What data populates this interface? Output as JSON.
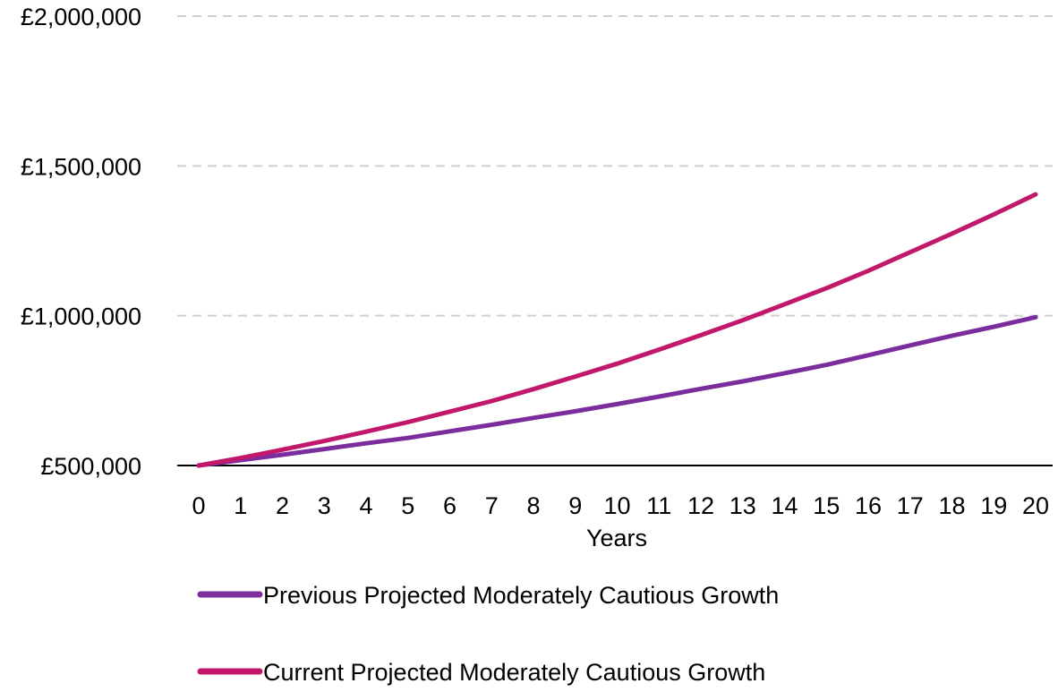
{
  "chart_data": {
    "type": "line",
    "title": "",
    "xlabel": "Years",
    "ylabel": "",
    "x": [
      0,
      1,
      2,
      3,
      4,
      5,
      6,
      7,
      8,
      9,
      10,
      11,
      12,
      13,
      14,
      15,
      16,
      17,
      18,
      19,
      20
    ],
    "ylim": [
      500000,
      2000000
    ],
    "yticks": [
      500000,
      1000000,
      1500000,
      2000000
    ],
    "ytick_labels": [
      "£500,000",
      "£1,000,000",
      "£1,500,000",
      "£2,000,000"
    ],
    "grid": true,
    "legend_position": "bottom",
    "series": [
      {
        "name": "Previous Projected Moderately Cautious Growth",
        "color": "#7b2d9e",
        "values": [
          500000,
          518000,
          536000,
          555000,
          574000,
          592000,
          614000,
          636000,
          659000,
          681000,
          705000,
          730000,
          756000,
          781000,
          808000,
          836000,
          868000,
          901000,
          933000,
          963000,
          995000
        ]
      },
      {
        "name": "Current Projected Moderately Cautious Growth",
        "color": "#c2186b",
        "values": [
          500000,
          525000,
          553000,
          582000,
          613000,
          645000,
          680000,
          715000,
          755000,
          797000,
          840000,
          887000,
          935000,
          985000,
          1038000,
          1092000,
          1150000,
          1212000,
          1274000,
          1338000,
          1405000
        ]
      }
    ],
    "axis_color": "#000000",
    "grid_color": "#d0d0d0"
  }
}
